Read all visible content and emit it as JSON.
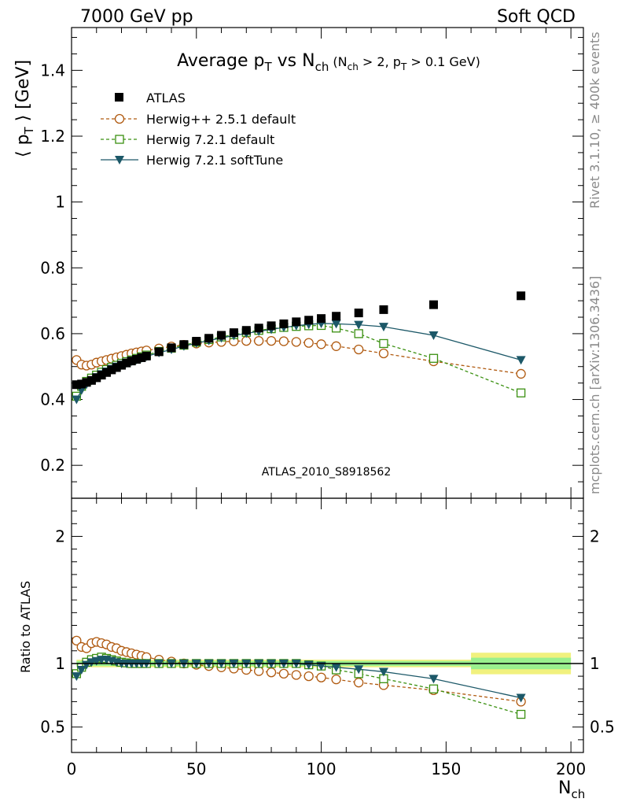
{
  "header": {
    "left": "7000 GeV pp",
    "right": "Soft QCD"
  },
  "side_labels": {
    "rivet": "Rivet 3.1.10, ≥ 400k events",
    "mcplots": "mcplots.cern.ch [arXiv:1306.3436]"
  },
  "analysis_tag": "ATLAS_2010_S8918562",
  "colors": {
    "atlas": "#000000",
    "herwigpp": "#b05a10",
    "herwig721": "#3a9010",
    "softtune": "#1c5868",
    "band_inner": "#90f090",
    "band_outer": "#f0f070"
  },
  "chart_data": [
    {
      "type": "scatter",
      "title": "Average pT vs Nch (Nch > 2, pT > 0.1 GeV)",
      "xlabel": "Nch",
      "ylabel": "⟨ pT ⟩ [GeV]",
      "xlim": [
        0,
        205
      ],
      "ylim": [
        0.1,
        1.53
      ],
      "yticks": [
        0.2,
        0.4,
        0.6,
        0.8,
        1.0,
        1.2,
        1.4
      ],
      "ytick_labels": [
        "0.2",
        "0.4",
        "0.6",
        "0.8",
        "1",
        "1.2",
        "1.4"
      ],
      "legend_position": "top-left",
      "series": [
        {
          "name": "ATLAS",
          "marker": "filled-square",
          "x": [
            2,
            4,
            6,
            8,
            10,
            12,
            14,
            16,
            18,
            20,
            22,
            24,
            26,
            28,
            30,
            35,
            40,
            45,
            50,
            55,
            60,
            65,
            70,
            75,
            80,
            85,
            90,
            95,
            100,
            106,
            115,
            125,
            145,
            180
          ],
          "y": [
            0.445,
            0.447,
            0.452,
            0.458,
            0.466,
            0.474,
            0.482,
            0.49,
            0.497,
            0.504,
            0.511,
            0.517,
            0.522,
            0.527,
            0.532,
            0.545,
            0.557,
            0.567,
            0.577,
            0.586,
            0.595,
            0.603,
            0.61,
            0.617,
            0.624,
            0.63,
            0.636,
            0.641,
            0.646,
            0.653,
            0.663,
            0.673,
            0.688,
            0.715
          ]
        },
        {
          "name": "Herwig++ 2.5.1 default",
          "marker": "open-circle",
          "line": "dashed",
          "x": [
            2,
            4,
            6,
            8,
            10,
            12,
            14,
            16,
            18,
            20,
            22,
            24,
            26,
            28,
            30,
            35,
            40,
            45,
            50,
            55,
            60,
            65,
            70,
            75,
            80,
            85,
            90,
            95,
            100,
            106,
            115,
            125,
            145,
            180
          ],
          "y": [
            0.52,
            0.506,
            0.503,
            0.506,
            0.512,
            0.516,
            0.52,
            0.524,
            0.528,
            0.532,
            0.536,
            0.54,
            0.543,
            0.546,
            0.549,
            0.555,
            0.561,
            0.566,
            0.57,
            0.573,
            0.575,
            0.577,
            0.578,
            0.578,
            0.578,
            0.577,
            0.575,
            0.572,
            0.568,
            0.562,
            0.552,
            0.54,
            0.516,
            0.478
          ]
        },
        {
          "name": "Herwig 7.2.1 default",
          "marker": "open-square",
          "line": "dashed",
          "x": [
            2,
            4,
            6,
            8,
            10,
            12,
            14,
            16,
            18,
            20,
            22,
            24,
            26,
            28,
            30,
            35,
            40,
            45,
            50,
            55,
            60,
            65,
            70,
            75,
            80,
            85,
            90,
            95,
            100,
            106,
            115,
            125,
            145,
            180
          ],
          "y": [
            0.41,
            0.44,
            0.455,
            0.465,
            0.474,
            0.483,
            0.491,
            0.498,
            0.504,
            0.51,
            0.515,
            0.52,
            0.525,
            0.53,
            0.535,
            0.546,
            0.556,
            0.565,
            0.574,
            0.582,
            0.59,
            0.597,
            0.604,
            0.61,
            0.615,
            0.619,
            0.622,
            0.624,
            0.625,
            0.617,
            0.6,
            0.57,
            0.525,
            0.42
          ]
        },
        {
          "name": "Herwig 7.2.1 softTune",
          "marker": "filled-triangle-down",
          "line": "solid",
          "x": [
            2,
            4,
            6,
            8,
            10,
            12,
            14,
            16,
            18,
            20,
            22,
            24,
            26,
            28,
            30,
            35,
            40,
            45,
            50,
            55,
            60,
            65,
            70,
            75,
            80,
            85,
            90,
            95,
            100,
            106,
            115,
            125,
            145,
            180
          ],
          "y": [
            0.4,
            0.428,
            0.446,
            0.458,
            0.468,
            0.477,
            0.485,
            0.493,
            0.5,
            0.506,
            0.511,
            0.516,
            0.521,
            0.526,
            0.531,
            0.542,
            0.552,
            0.562,
            0.571,
            0.579,
            0.587,
            0.594,
            0.601,
            0.607,
            0.613,
            0.619,
            0.624,
            0.628,
            0.631,
            0.63,
            0.627,
            0.621,
            0.595,
            0.52
          ]
        }
      ]
    },
    {
      "type": "line",
      "title": "",
      "xlabel": "Nch",
      "ylabel": "Ratio to ATLAS",
      "xlim": [
        0,
        205
      ],
      "ylim": [
        0.3,
        2.3
      ],
      "yticks": [
        0.5,
        1,
        2
      ],
      "ytick_labels": [
        "0.5",
        "1",
        "2"
      ],
      "xticks": [
        0,
        50,
        100,
        150,
        200
      ],
      "xtick_labels": [
        "0",
        "50",
        "100",
        "150",
        "200"
      ],
      "uncertainty_band": {
        "x": [
          2,
          160,
          160,
          200
        ],
        "inner_halfwidth": [
          0.02,
          0.02,
          0.045,
          0.045
        ],
        "outer_halfwidth": [
          0.03,
          0.03,
          0.085,
          0.085
        ]
      },
      "series": [
        {
          "name": "Herwig++ 2.5.1 default",
          "x": [
            2,
            4,
            6,
            8,
            10,
            12,
            14,
            16,
            18,
            20,
            22,
            24,
            26,
            28,
            30,
            35,
            40,
            45,
            50,
            55,
            60,
            65,
            70,
            75,
            80,
            85,
            90,
            95,
            100,
            106,
            115,
            125,
            145,
            180
          ],
          "y": [
            1.18,
            1.13,
            1.12,
            1.16,
            1.17,
            1.16,
            1.15,
            1.13,
            1.12,
            1.1,
            1.09,
            1.08,
            1.07,
            1.06,
            1.05,
            1.03,
            1.015,
            1.0,
            0.99,
            0.98,
            0.97,
            0.96,
            0.95,
            0.94,
            0.93,
            0.92,
            0.91,
            0.9,
            0.89,
            0.875,
            0.85,
            0.83,
            0.79,
            0.7
          ]
        },
        {
          "name": "Herwig 7.2.1 default",
          "x": [
            2,
            4,
            6,
            8,
            10,
            12,
            14,
            16,
            18,
            20,
            22,
            24,
            26,
            28,
            30,
            35,
            40,
            45,
            50,
            55,
            60,
            65,
            70,
            75,
            80,
            85,
            90,
            95,
            100,
            106,
            115,
            125,
            145,
            180
          ],
          "y": [
            0.92,
            0.97,
            1.01,
            1.03,
            1.04,
            1.05,
            1.04,
            1.03,
            1.02,
            1.01,
            1.005,
            1.0,
            1.0,
            1.0,
            1.0,
            1.0,
            1.0,
            1.0,
            1.0,
            1.0,
            1.0,
            1.0,
            1.0,
            1.0,
            1.0,
            1.0,
            1.0,
            0.99,
            0.98,
            0.95,
            0.92,
            0.88,
            0.8,
            0.6
          ]
        },
        {
          "name": "Herwig 7.2.1 softTune",
          "x": [
            2,
            4,
            6,
            8,
            10,
            12,
            14,
            16,
            18,
            20,
            22,
            24,
            26,
            28,
            30,
            35,
            40,
            45,
            50,
            55,
            60,
            65,
            70,
            75,
            80,
            85,
            90,
            95,
            100,
            106,
            115,
            125,
            145,
            180
          ],
          "y": [
            0.9,
            0.95,
            0.99,
            1.01,
            1.02,
            1.03,
            1.03,
            1.02,
            1.01,
            1.0,
            1.0,
            1.0,
            1.0,
            1.0,
            1.0,
            1.0,
            1.0,
            1.0,
            1.0,
            1.0,
            1.0,
            1.0,
            1.0,
            1.0,
            1.0,
            1.0,
            1.0,
            0.99,
            0.98,
            0.97,
            0.955,
            0.935,
            0.88,
            0.73
          ]
        }
      ]
    }
  ]
}
